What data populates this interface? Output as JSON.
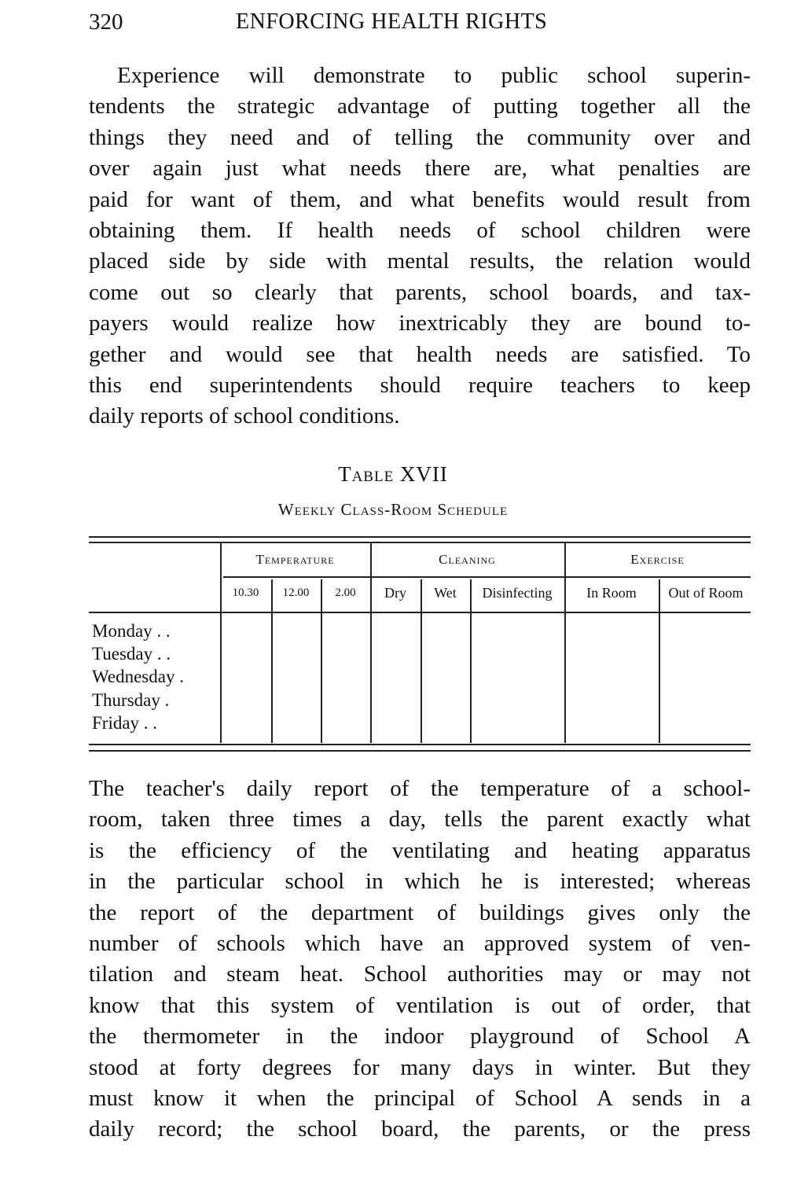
{
  "header": {
    "page_number": "320",
    "running_title": "ENFORCING HEALTH RIGHTS"
  },
  "paragraph1": [
    "Experience will demonstrate to public school superin-",
    "tendents the strategic advantage of putting together all the",
    "things they need and of telling the community over and",
    "over again just what needs there are, what penalties are",
    "paid for want of them, and what benefits would result from",
    "obtaining them. If health needs of school children were",
    "placed side by side with mental results, the relation would",
    "come out so clearly that parents, school boards, and tax-",
    "payers would realize how inextricably they are bound to-",
    "gether and would see that health needs are satisfied. To",
    "this end superintendents should require teachers to keep",
    "daily reports of school conditions."
  ],
  "table": {
    "label": "Table XVII",
    "title": "Weekly Class-Room Schedule",
    "groups": [
      "Temperature",
      "Cleaning",
      "Exercise"
    ],
    "columns": [
      "10.30",
      "12.00",
      "2.00",
      "Dry",
      "Wet",
      "Disinfecting",
      "In Room",
      "Out of Room"
    ],
    "rows": [
      "Monday . .",
      "Tuesday . .",
      "Wednesday .",
      "Thursday .",
      "Friday . ."
    ]
  },
  "paragraph2": [
    "The teacher's daily report of the temperature of a school-",
    "room, taken three times a day, tells the parent exactly what",
    "is the efficiency of the ventilating and heating apparatus",
    "in the particular school in which he is interested; whereas",
    "the report of the department of buildings gives only the",
    "number of schools which have an approved system of ven-",
    "tilation and steam heat. School authorities may or may not",
    "know that this system of ventilation is out of order, that",
    "the thermometer in the indoor playground of School A",
    "stood at forty degrees for many days in winter. But they",
    "must know it when the principal of School A sends in a",
    "daily record; the school board, the parents, or the press"
  ]
}
